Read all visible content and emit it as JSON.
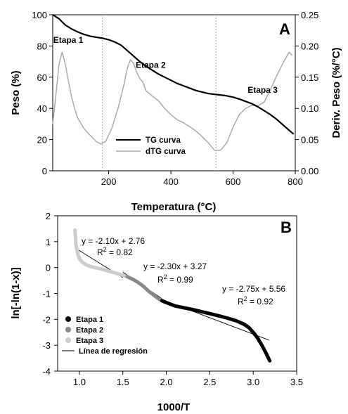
{
  "chart_data": [
    {
      "type": "line",
      "panel_label": "A",
      "xlabel": "Temperatura (°C)",
      "ylabel": "Peso (%)",
      "y2label": "Deriv. Peso (%/°C)",
      "xlim": [
        20,
        800
      ],
      "ylim": [
        0,
        100
      ],
      "y2lim": [
        0,
        0.25
      ],
      "x_ticks": [
        200,
        400,
        600,
        800
      ],
      "y_ticks": [
        0,
        20,
        40,
        60,
        80,
        100
      ],
      "y2_ticks": [
        "0.00",
        "0.05",
        "0.10",
        "0.15",
        "0.20",
        "0.25"
      ],
      "vlines": [
        180,
        545
      ],
      "stage_labels": [
        {
          "text": "Etapa 1",
          "x": 70,
          "y": 82
        },
        {
          "text": "Etapa 2",
          "x": 335,
          "y": 66
        },
        {
          "text": "Etapa 3",
          "x": 695,
          "y": 50
        }
      ],
      "legend": [
        {
          "text": "TG curva",
          "color": "#000000"
        },
        {
          "text": "dTG curva",
          "color": "#aaaaaa"
        }
      ],
      "series": [
        {
          "name": "TG curva",
          "axis": "left",
          "color": "#000000",
          "x": [
            20,
            40,
            60,
            80,
            100,
            120,
            140,
            160,
            180,
            200,
            220,
            240,
            260,
            280,
            300,
            320,
            340,
            360,
            380,
            400,
            420,
            440,
            460,
            480,
            500,
            520,
            540,
            560,
            580,
            600,
            620,
            640,
            660,
            680,
            700,
            720,
            740,
            760,
            780,
            795
          ],
          "y": [
            100,
            97.5,
            93.5,
            91,
            89,
            87.5,
            86.3,
            85.6,
            85,
            84,
            82.5,
            80.5,
            77,
            73.5,
            70,
            67,
            64.5,
            62,
            60,
            58,
            56,
            54.5,
            53,
            51.5,
            50.5,
            49.5,
            49,
            48.6,
            48,
            47.2,
            46,
            44.5,
            43,
            41,
            38.5,
            36,
            33,
            29.5,
            26,
            23.5
          ]
        },
        {
          "name": "dTG curva",
          "axis": "right",
          "color": "#aaaaaa",
          "x": [
            20,
            30,
            40,
            50,
            60,
            70,
            80,
            90,
            100,
            120,
            140,
            160,
            175,
            190,
            210,
            230,
            250,
            260,
            270,
            280,
            290,
            300,
            310,
            320,
            340,
            360,
            380,
            400,
            420,
            440,
            460,
            480,
            500,
            520,
            540,
            560,
            580,
            600,
            620,
            640,
            660,
            680,
            700,
            720,
            740,
            760,
            780,
            790
          ],
          "y": [
            0.075,
            0.12,
            0.17,
            0.19,
            0.172,
            0.145,
            0.12,
            0.1,
            0.085,
            0.068,
            0.057,
            0.047,
            0.043,
            0.047,
            0.068,
            0.1,
            0.14,
            0.165,
            0.178,
            0.172,
            0.158,
            0.148,
            0.142,
            0.128,
            0.12,
            0.112,
            0.1,
            0.09,
            0.082,
            0.077,
            0.071,
            0.064,
            0.055,
            0.045,
            0.033,
            0.033,
            0.045,
            0.07,
            0.09,
            0.1,
            0.105,
            0.104,
            0.11,
            0.13,
            0.152,
            0.172,
            0.19,
            0.185
          ]
        }
      ]
    },
    {
      "type": "scatter",
      "panel_label": "B",
      "xlabel": "1000/T",
      "ylabel": "ln[-ln(1-x)]",
      "xlim": [
        0.75,
        3.5
      ],
      "ylim": [
        -4,
        2
      ],
      "x_ticks": [
        "1.0",
        "1.5",
        "2.0",
        "2.5",
        "3.0",
        "3.5"
      ],
      "y_ticks": [
        -4,
        -3,
        -2,
        -1,
        0,
        1,
        2
      ],
      "equations": [
        {
          "eq": "y = -2.10x + 2.76",
          "r2_prefix": "R",
          "r2_sup": "2",
          "r2_value": " = 0.82"
        },
        {
          "eq": "y = -2.30x + 3.27",
          "r2_prefix": "R",
          "r2_sup": "2",
          "r2_value": " = 0.99"
        },
        {
          "eq": "y = -2.75x + 5.56",
          "r2_prefix": "R",
          "r2_sup": "2",
          "r2_value": " = 0.92"
        }
      ],
      "legend": [
        {
          "text": "Etapa 1",
          "color": "#000000"
        },
        {
          "text": "Etapa 2",
          "color": "#888888"
        },
        {
          "text": "Etapa 3",
          "color": "#cccccc"
        },
        {
          "text": "Línea de regresión",
          "color": "#000000"
        }
      ],
      "series": [
        {
          "name": "Etapa 3",
          "color": "#cccccc",
          "x": [
            0.95,
            0.96,
            0.98,
            1.0,
            1.03,
            1.07,
            1.12,
            1.18,
            1.25,
            1.32,
            1.4,
            1.48,
            1.55
          ],
          "y": [
            1.45,
            0.9,
            0.55,
            0.35,
            0.22,
            0.12,
            0.05,
            0.0,
            -0.05,
            -0.12,
            -0.2,
            -0.28,
            -0.35
          ]
        },
        {
          "name": "Etapa 2",
          "color": "#888888",
          "x": [
            1.55,
            1.6,
            1.65,
            1.7,
            1.75,
            1.8,
            1.85,
            1.9,
            1.95
          ],
          "y": [
            -0.35,
            -0.43,
            -0.52,
            -0.63,
            -0.76,
            -0.92,
            -1.05,
            -1.18,
            -1.28
          ]
        },
        {
          "name": "Etapa 1",
          "color": "#000000",
          "x": [
            1.95,
            2.0,
            2.1,
            2.2,
            2.3,
            2.4,
            2.5,
            2.6,
            2.7,
            2.8,
            2.85,
            2.9,
            2.95,
            3.0,
            3.05,
            3.1,
            3.15,
            3.19
          ],
          "y": [
            -1.28,
            -1.35,
            -1.48,
            -1.55,
            -1.62,
            -1.7,
            -1.78,
            -1.86,
            -1.95,
            -2.05,
            -2.12,
            -2.2,
            -2.32,
            -2.5,
            -2.72,
            -3.0,
            -3.32,
            -3.6
          ]
        }
      ],
      "regression_lines": [
        {
          "x": [
            0.97,
            1.5
          ],
          "y": [
            0.72,
            -0.39
          ]
        },
        {
          "x": [
            1.5,
            1.95
          ],
          "y": [
            -0.18,
            -1.2
          ]
        },
        {
          "x": [
            1.95,
            3.18
          ],
          "y": [
            -1.24,
            -2.8
          ]
        }
      ]
    }
  ]
}
